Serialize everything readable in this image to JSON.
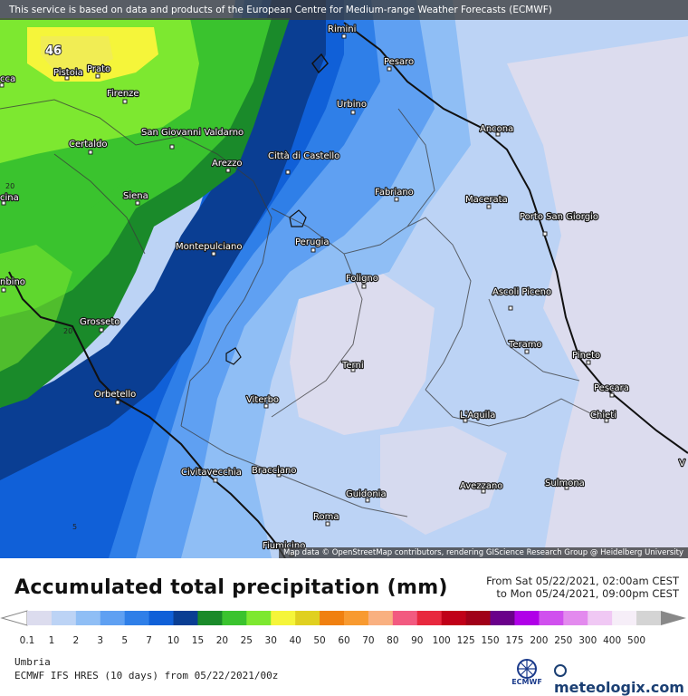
{
  "disclaimer": "This service is based on data and products of the European Centre for Medium-range Weather Forecasts (ECMWF)",
  "attribution": "Map data © OpenStreetMap contributors, rendering GIScience Research Group @ Heidelberg University",
  "title": "Accumulated total precipitation (mm)",
  "time_range": {
    "from": "From Sat 05/22/2021, 02:00am CEST",
    "to": "to Mon 05/24/2021, 09:00pm CEST"
  },
  "region": "Umbria",
  "model": "ECMWF IFS HRES (10 days) from 05/22/2021/00z",
  "logos": {
    "ecmwf": "ECMWF",
    "meteologix": "meteologix.com"
  },
  "legend": {
    "levels": [
      "0.1",
      "1",
      "2",
      "3",
      "5",
      "7",
      "10",
      "15",
      "20",
      "25",
      "30",
      "40",
      "50",
      "60",
      "70",
      "80",
      "90",
      "100",
      "125",
      "150",
      "175",
      "200",
      "250",
      "300",
      "400",
      "500"
    ],
    "colors": [
      "#dcdcee",
      "#bcd3f5",
      "#8fbef5",
      "#5fa0f2",
      "#2f7fe8",
      "#1060d8",
      "#0a3e93",
      "#1a8a2a",
      "#3ac32e",
      "#7de830",
      "#f5f53a",
      "#e0d020",
      "#f08010",
      "#f89a30",
      "#f9b080",
      "#f25a80",
      "#e8283e",
      "#c00018",
      "#a00018",
      "#6a008a",
      "#b000e8",
      "#d050ee",
      "#e38aee",
      "#f0c8f4",
      "#f6eef8",
      "#d4d4d4"
    ]
  },
  "places": [
    {
      "name": "Rimini"
    },
    {
      "name": "Pesaro"
    },
    {
      "name": "Pistoia"
    },
    {
      "name": "Prato"
    },
    {
      "name": "Firenze"
    },
    {
      "name": "Urbino"
    },
    {
      "name": "Ancona"
    },
    {
      "name": "Certaldo"
    },
    {
      "name": "San Giovanni Valdarno"
    },
    {
      "name": "Arezzo"
    },
    {
      "name": "Città di Castello"
    },
    {
      "name": "Fabriano"
    },
    {
      "name": "Macerata"
    },
    {
      "name": "Siena"
    },
    {
      "name": "Porto San Giorgio"
    },
    {
      "name": "Montepulciano"
    },
    {
      "name": "Perugia"
    },
    {
      "name": "Foligno"
    },
    {
      "name": "Ascoli Piceno"
    },
    {
      "name": "Grosseto"
    },
    {
      "name": "Teramo"
    },
    {
      "name": "Pineto"
    },
    {
      "name": "Terni"
    },
    {
      "name": "Pescara"
    },
    {
      "name": "Orbetello"
    },
    {
      "name": "Viterbo"
    },
    {
      "name": "L'Aquila"
    },
    {
      "name": "Chieti"
    },
    {
      "name": "Civitavecchia"
    },
    {
      "name": "Bracciano"
    },
    {
      "name": "Sulmona"
    },
    {
      "name": "Avezzano"
    },
    {
      "name": "Guidonia"
    },
    {
      "name": "Roma"
    },
    {
      "name": "Fiumicino"
    },
    {
      "name": "cca"
    },
    {
      "name": "cina"
    },
    {
      "name": "nbino"
    },
    {
      "name": "V"
    }
  ],
  "map_values": [
    "46",
    "20",
    "20",
    "5"
  ]
}
